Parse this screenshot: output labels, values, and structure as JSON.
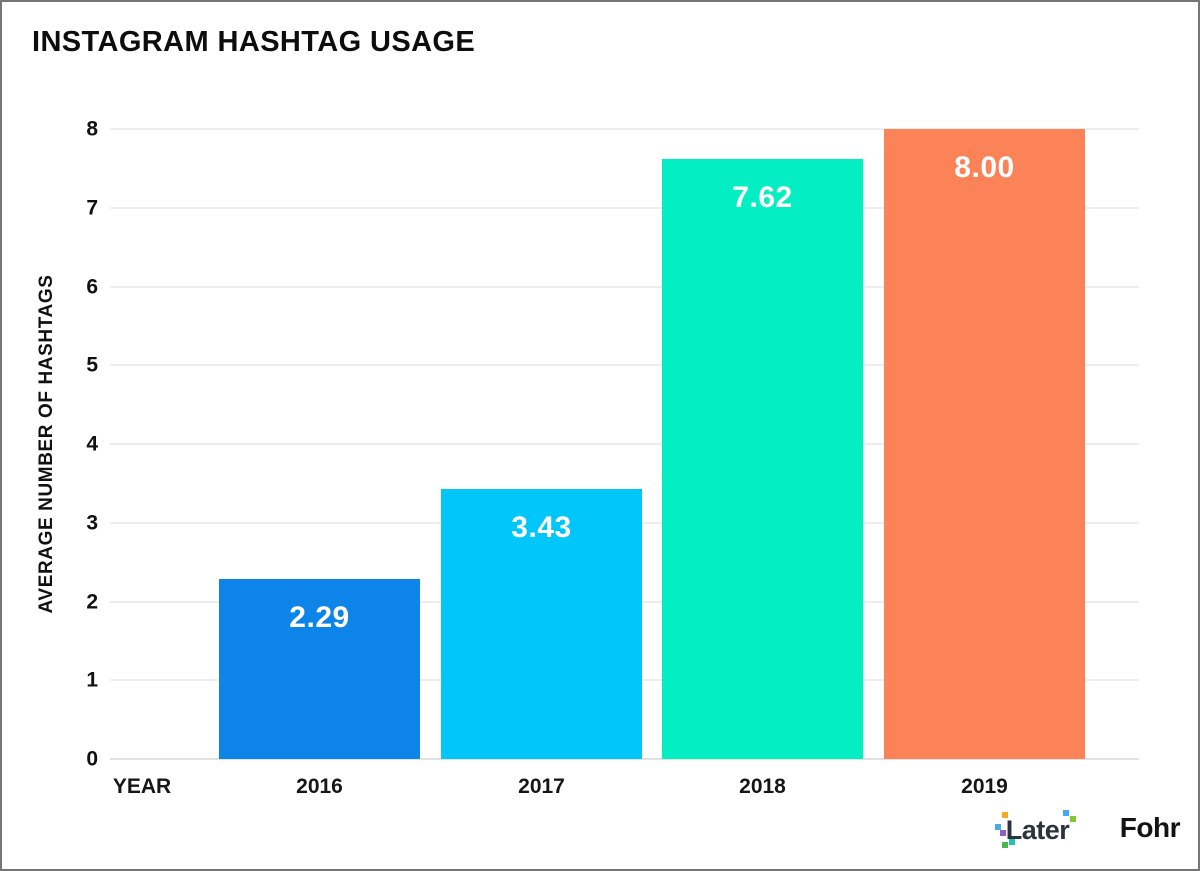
{
  "chart_data": {
    "type": "bar",
    "title": "INSTAGRAM HASHTAG USAGE",
    "xlabel": "YEAR",
    "ylabel": "AVERAGE NUMBER OF HASHTAGS",
    "categories": [
      "2016",
      "2017",
      "2018",
      "2019"
    ],
    "values": [
      2.29,
      3.43,
      7.62,
      8.0
    ],
    "value_labels": [
      "2.29",
      "3.43",
      "7.62",
      "8.00"
    ],
    "bar_colors": [
      "#0d85e8",
      "#00c6fa",
      "#03efc3",
      "#fc8257"
    ],
    "value_label_color": "#ffffff",
    "ylim": [
      0,
      8
    ],
    "yticks": [
      0,
      1,
      2,
      3,
      4,
      5,
      6,
      7,
      8
    ],
    "ytick_labels": [
      "0",
      "1",
      "2",
      "3",
      "4",
      "5",
      "6",
      "7",
      "8"
    ],
    "grid": true,
    "gridline_color": "#ededed",
    "legend": "none"
  },
  "branding": {
    "later_label": "Later",
    "fohr_label": "Fohr",
    "later_pixel_colors": [
      "#f9a825",
      "#4da9ea",
      "#8f5ec9",
      "#49b749",
      "#23c4ad",
      "#3fa9f5",
      "#7ec832"
    ]
  }
}
